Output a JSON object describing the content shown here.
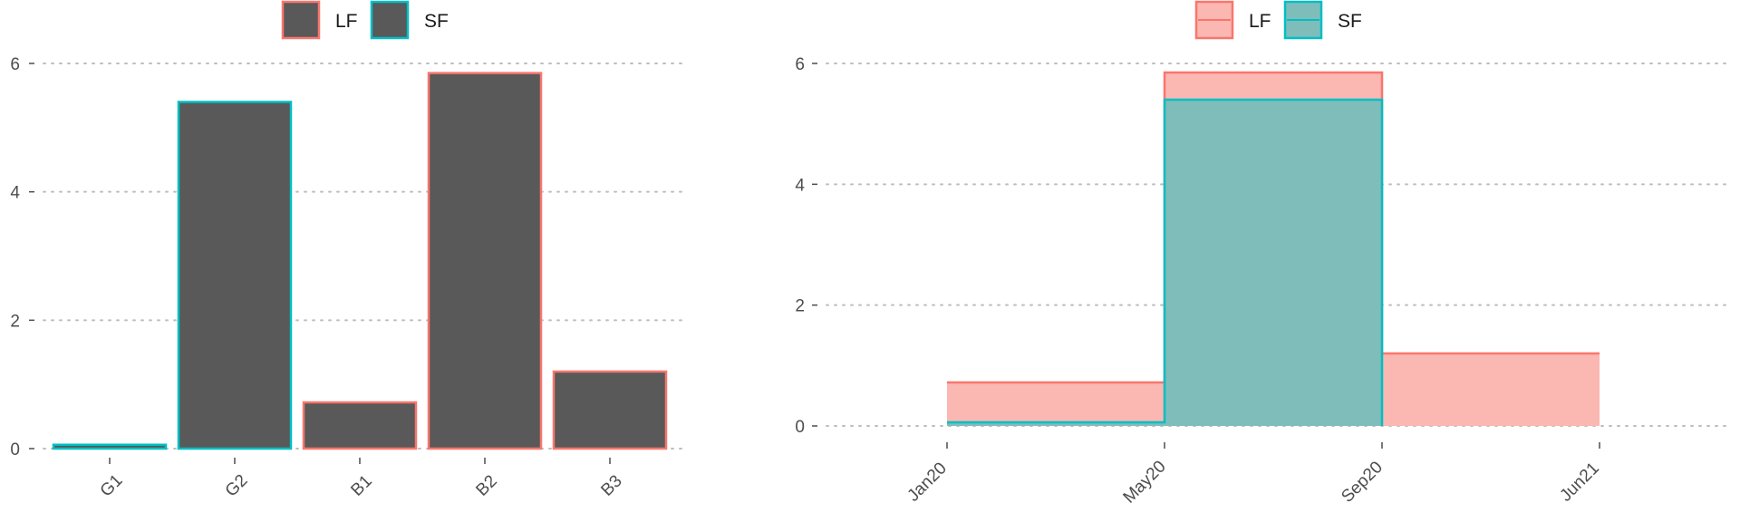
{
  "colors": {
    "lf": "#F8766D",
    "sf": "#00BFC4",
    "bar_fill": "#595959",
    "lf_area": "#FBB7B2",
    "sf_area": "#7FBDBB",
    "grid": "#BEBEBE",
    "tick": "#4D4D4D"
  },
  "chart_data": [
    {
      "type": "bar",
      "title": "",
      "xlabel": "",
      "ylabel": "",
      "legend": {
        "position": "top",
        "entries": [
          "LF",
          "SF"
        ]
      },
      "categories": [
        "G1",
        "G2",
        "B1",
        "B2",
        "B3"
      ],
      "values": [
        0.06,
        5.4,
        0.72,
        5.85,
        1.2
      ],
      "outline_series": [
        "SF",
        "SF",
        "LF",
        "LF",
        "LF"
      ],
      "ylim": [
        0,
        6.3
      ],
      "yticks": [
        0,
        2,
        4,
        6
      ],
      "grid": "horizontal dotted"
    },
    {
      "type": "area",
      "title": "",
      "xlabel": "",
      "ylabel": "",
      "legend": {
        "position": "top",
        "entries": [
          "LF",
          "SF"
        ]
      },
      "x_ticks": [
        "Jan20",
        "May20",
        "Sep20",
        "Jun21"
      ],
      "series": [
        {
          "name": "LF",
          "step_segments": [
            {
              "from": "Jan20",
              "to": "May20",
              "value": 0.72
            },
            {
              "from": "May20",
              "to": "Sep20",
              "value": 5.85
            },
            {
              "from": "Sep20",
              "to": "Jun21",
              "value": 1.2
            }
          ]
        },
        {
          "name": "SF",
          "step_segments": [
            {
              "from": "Jan20",
              "to": "May20",
              "value": 0.06
            },
            {
              "from": "May20",
              "to": "Sep20",
              "value": 5.4
            }
          ]
        }
      ],
      "ylim": [
        0,
        6.3
      ],
      "yticks": [
        0,
        2,
        4,
        6
      ],
      "grid": "horizontal dotted"
    }
  ]
}
